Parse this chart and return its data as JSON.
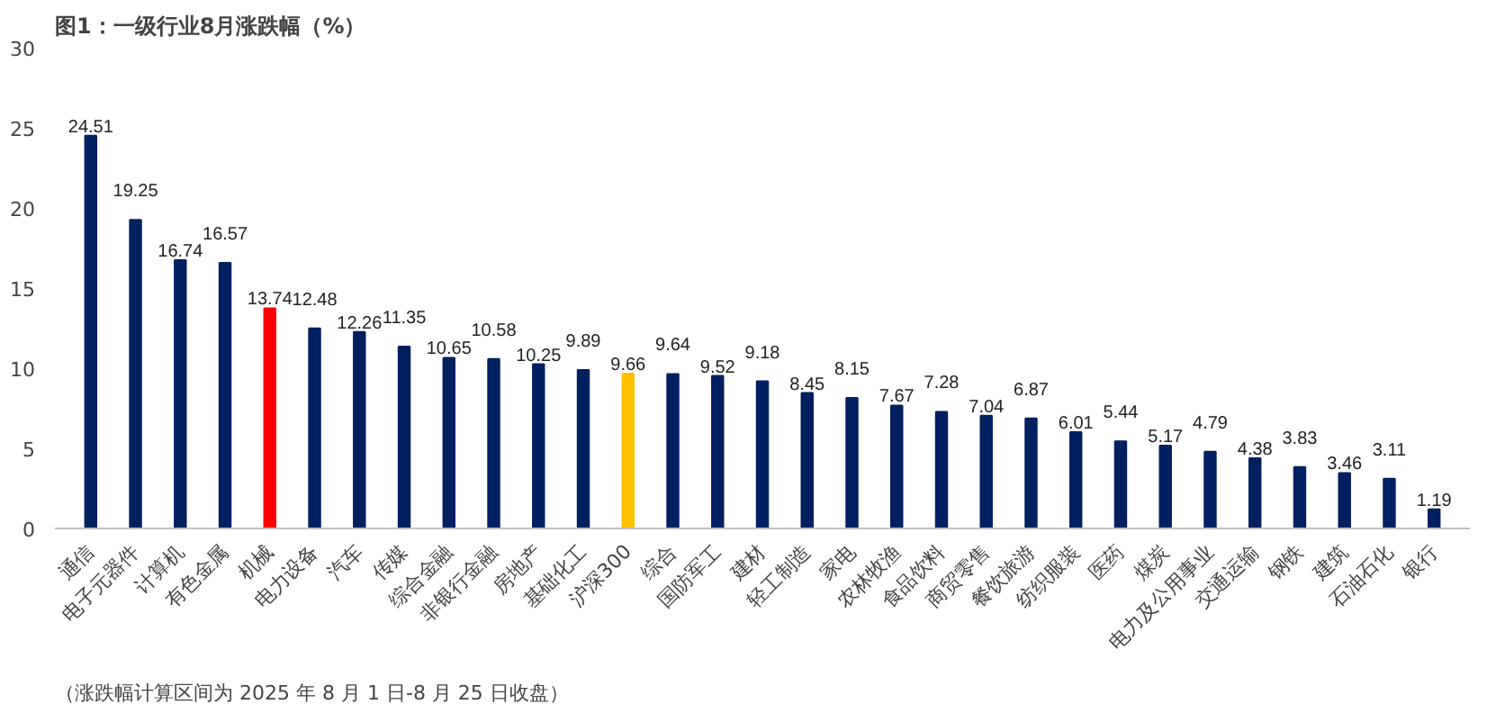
{
  "chart_data": {
    "type": "bar",
    "title": "图1：一级行业8月涨跌幅（%）",
    "categories": [
      "通信",
      "电子元器件",
      "计算机",
      "有色金属",
      "机械",
      "电力设备",
      "汽车",
      "传媒",
      "综合金融",
      "非银行金融",
      "房地产",
      "基础化工",
      "沪深300",
      "综合",
      "国防军工",
      "建材",
      "轻工制造",
      "家电",
      "农林牧渔",
      "食品饮料",
      "商贸零售",
      "餐饮旅游",
      "纺织服装",
      "医药",
      "煤炭",
      "电力及公用事业",
      "交通运输",
      "钢铁",
      "建筑",
      "石油石化",
      "银行"
    ],
    "values": [
      24.51,
      19.25,
      16.74,
      16.57,
      13.74,
      12.48,
      12.26,
      11.35,
      10.65,
      10.58,
      10.25,
      9.89,
      9.66,
      9.64,
      9.52,
      9.18,
      8.45,
      8.15,
      7.67,
      7.28,
      7.04,
      6.87,
      6.01,
      5.44,
      5.17,
      4.79,
      4.38,
      3.83,
      3.46,
      3.11,
      1.19
    ],
    "colors": [
      "#002060",
      "#002060",
      "#002060",
      "#002060",
      "#ff0000",
      "#002060",
      "#002060",
      "#002060",
      "#002060",
      "#002060",
      "#002060",
      "#002060",
      "#ffc000",
      "#002060",
      "#002060",
      "#002060",
      "#002060",
      "#002060",
      "#002060",
      "#002060",
      "#002060",
      "#002060",
      "#002060",
      "#002060",
      "#002060",
      "#002060",
      "#002060",
      "#002060",
      "#002060",
      "#002060",
      "#002060"
    ],
    "ylim": [
      0,
      30
    ],
    "yticks": [
      0,
      5,
      10,
      15,
      20,
      25,
      30
    ],
    "grid": false,
    "data_labels": true,
    "annotations": [
      "（涨跌幅计算区间为 2025 年 8 月 1 日-8 月 25 日收盘）"
    ]
  }
}
